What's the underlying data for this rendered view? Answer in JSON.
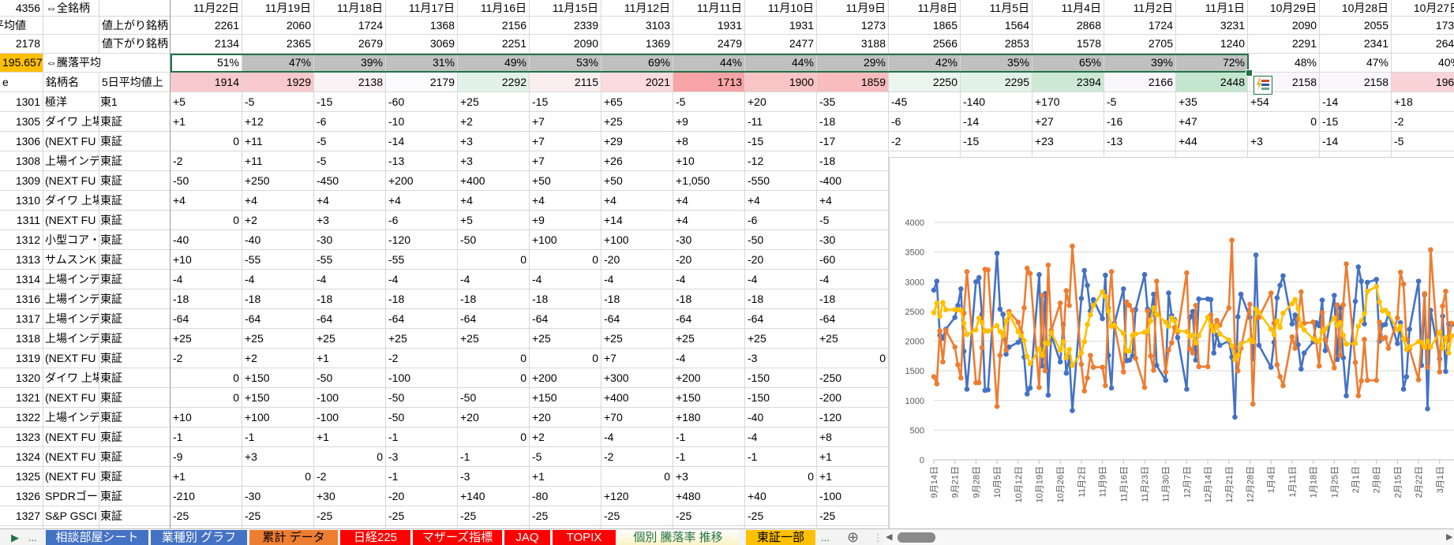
{
  "colors": {
    "accent": "#217346",
    "up_series": "#4472c4",
    "down_series": "#ed7d31",
    "avg_series": "#ffc000",
    "highlight_cell": "#ffc000"
  },
  "header": {
    "a1": "4356",
    "b1": "⇔全銘柄",
    "a2": "平均値",
    "c2": "値上がり銘柄",
    "a3": "2178",
    "c3": "値下がり銘柄",
    "a4": "195.657",
    "b4": "⇔騰落平均",
    "a5": "e",
    "b5": "銘柄名",
    "c5": "5日平均値上"
  },
  "dates": [
    "11月22日",
    "11月19日",
    "11月18日",
    "11月17日",
    "11月16日",
    "11月15日",
    "11月12日",
    "11月11日",
    "11月10日",
    "11月9日",
    "11月8日",
    "11月5日",
    "11月4日",
    "11月2日",
    "11月1日",
    "10月29日",
    "10月28日",
    "10月27日"
  ],
  "advancers": [
    "2261",
    "2060",
    "1724",
    "1368",
    "2156",
    "2339",
    "3103",
    "1931",
    "1931",
    "1273",
    "1865",
    "1564",
    "2868",
    "1724",
    "3231",
    "2090",
    "2055",
    "1732"
  ],
  "decliners": [
    "2134",
    "2365",
    "2679",
    "3069",
    "2251",
    "2090",
    "1369",
    "2479",
    "2477",
    "3188",
    "2566",
    "2853",
    "1578",
    "2705",
    "1240",
    "2291",
    "2341",
    "2645"
  ],
  "ratio": [
    "51%",
    "47%",
    "39%",
    "31%",
    "49%",
    "53%",
    "69%",
    "44%",
    "44%",
    "29%",
    "42%",
    "35%",
    "65%",
    "39%",
    "72%",
    "48%",
    "47%",
    "40%"
  ],
  "avg5": [
    "1914",
    "1929",
    "2138",
    "2179",
    "2292",
    "2115",
    "2021",
    "1713",
    "1900",
    "1859",
    "2250",
    "2295",
    "2394",
    "2166",
    "2448",
    "2158",
    "2158",
    "1964"
  ],
  "avg5_colors": [
    "#f8c9cc",
    "#f8c9cc",
    "#faf3f5",
    "#fbfafd",
    "#e3f2e8",
    "#fbeef1",
    "#fadadd",
    "#f8a3a5",
    "#f9c4c6",
    "#f8bcbf",
    "#eaf5ee",
    "#e3f2e8",
    "#cde9d6",
    "#f9f7fb",
    "#c4e6ce",
    "#f9f7fb",
    "#f9f7fb",
    "#f9d3d6"
  ],
  "rows": [
    {
      "code": "1301",
      "name": "極洋",
      "market": "東1",
      "values": [
        "+5",
        "-5",
        "-15",
        "-60",
        "+25",
        "-15",
        "+65",
        "-5",
        "+20",
        "-35",
        "-45",
        "-140",
        "+170",
        "-5",
        "+35",
        "+54",
        "-14",
        "+18"
      ]
    },
    {
      "code": "1305",
      "name": "ダイワ 上場",
      "market": "東証",
      "values": [
        "+1",
        "+12",
        "-6",
        "-10",
        "+2",
        "+7",
        "+25",
        "+9",
        "-11",
        "-18",
        "-6",
        "-14",
        "+27",
        "-16",
        "+47",
        "0",
        "-15",
        "-2"
      ]
    },
    {
      "code": "1306",
      "name": "(NEXT FU",
      "market": "東証",
      "values": [
        "0",
        "+11",
        "-5",
        "-14",
        "+3",
        "+7",
        "+29",
        "+8",
        "-15",
        "-17",
        "-2",
        "-15",
        "+23",
        "-13",
        "+44",
        "+3",
        "-14",
        "-5"
      ]
    },
    {
      "code": "1308",
      "name": "上場インデ",
      "market": "東証",
      "values": [
        "-2",
        "+11",
        "-5",
        "-13",
        "+3",
        "+7",
        "+26",
        "+10",
        "-12",
        "-18",
        "-6",
        "-15",
        "+26",
        "-15",
        "+45",
        "+5",
        "-16",
        "-5"
      ]
    },
    {
      "code": "1309",
      "name": "(NEXT FU",
      "market": "東証",
      "values": [
        "-50",
        "+250",
        "-450",
        "+200",
        "+400",
        "+50",
        "+50",
        "+1,050",
        "-550",
        "-400"
      ]
    },
    {
      "code": "1310",
      "name": "ダイワ 上場",
      "market": "東証",
      "values": [
        "+4",
        "+4",
        "+4",
        "+4",
        "+4",
        "+4",
        "+4",
        "+4",
        "+4",
        "+4"
      ]
    },
    {
      "code": "1311",
      "name": "(NEXT FU",
      "market": "東証",
      "values": [
        "0",
        "+2",
        "+3",
        "-6",
        "+5",
        "+9",
        "+14",
        "+4",
        "-6",
        "-5"
      ]
    },
    {
      "code": "1312",
      "name": "小型コア・",
      "market": "東証",
      "values": [
        "-40",
        "-40",
        "-30",
        "-120",
        "-50",
        "+100",
        "+100",
        "-30",
        "-50",
        "-30"
      ]
    },
    {
      "code": "1313",
      "name": "サムスンK",
      "market": "東証",
      "values": [
        "+10",
        "-55",
        "-55",
        "-55",
        "0",
        "0",
        "-20",
        "-20",
        "-20",
        "-60"
      ]
    },
    {
      "code": "1314",
      "name": "上場インデ",
      "market": "東証",
      "values": [
        "-4",
        "-4",
        "-4",
        "-4",
        "-4",
        "-4",
        "-4",
        "-4",
        "-4",
        "-4"
      ]
    },
    {
      "code": "1316",
      "name": "上場インデ",
      "market": "東証",
      "values": [
        "-18",
        "-18",
        "-18",
        "-18",
        "-18",
        "-18",
        "-18",
        "-18",
        "-18",
        "-18"
      ]
    },
    {
      "code": "1317",
      "name": "上場インデ",
      "market": "東証",
      "values": [
        "-64",
        "-64",
        "-64",
        "-64",
        "-64",
        "-64",
        "-64",
        "-64",
        "-64",
        "-64"
      ]
    },
    {
      "code": "1318",
      "name": "上場インデ",
      "market": "東証",
      "values": [
        "+25",
        "+25",
        "+25",
        "+25",
        "+25",
        "+25",
        "+25",
        "+25",
        "+25",
        "+25"
      ]
    },
    {
      "code": "1319",
      "name": "(NEXT FU",
      "market": "東証",
      "values": [
        "-2",
        "+2",
        "+1",
        "-2",
        "0",
        "0",
        "+7",
        "-4",
        "-3",
        "0"
      ]
    },
    {
      "code": "1320",
      "name": "ダイワ 上場",
      "market": "東証",
      "values": [
        "0",
        "+150",
        "-50",
        "-100",
        "0",
        "+200",
        "+300",
        "+200",
        "-150",
        "-250"
      ]
    },
    {
      "code": "1321",
      "name": "(NEXT FU",
      "market": "東証",
      "values": [
        "0",
        "+150",
        "-100",
        "-50",
        "-50",
        "+150",
        "+400",
        "+150",
        "-150",
        "-200"
      ]
    },
    {
      "code": "1322",
      "name": "上場インデ",
      "market": "東証",
      "values": [
        "+10",
        "+100",
        "-100",
        "-50",
        "+20",
        "+20",
        "+70",
        "+180",
        "-40",
        "-120"
      ]
    },
    {
      "code": "1323",
      "name": "(NEXT FU",
      "market": "東証",
      "values": [
        "-1",
        "-1",
        "+1",
        "-1",
        "0",
        "+2",
        "-4",
        "-1",
        "-4",
        "+8"
      ]
    },
    {
      "code": "1324",
      "name": "(NEXT FU",
      "market": "東証",
      "values": [
        "-9",
        "+3",
        "0",
        "-3",
        "-1",
        "-5",
        "-2",
        "-1",
        "-1",
        "+1"
      ]
    },
    {
      "code": "1325",
      "name": "(NEXT FU",
      "market": "東証",
      "values": [
        "+1",
        "0",
        "-2",
        "-1",
        "-3",
        "+1",
        "0",
        "+3",
        "0",
        "+1"
      ]
    },
    {
      "code": "1326",
      "name": "SPDRゴー",
      "market": "東証",
      "values": [
        "-210",
        "-30",
        "+30",
        "-20",
        "+140",
        "-80",
        "+120",
        "+480",
        "+40",
        "-100"
      ]
    },
    {
      "code": "1327",
      "name": "S&P GSCI",
      "market": "東証",
      "values": [
        "-25",
        "-25",
        "-25",
        "-25",
        "-25",
        "-25",
        "-25",
        "-25",
        "-25",
        "-25"
      ]
    },
    {
      "code": "1328",
      "name": "(NEXT FU",
      "market": "東証",
      "values": [
        "-40",
        "-20",
        "+10",
        "0",
        "+40",
        "-30",
        "+40",
        "+130",
        "+10",
        "-40"
      ]
    }
  ],
  "tabs": {
    "nav_prev": "▶",
    "more_left": "...",
    "more_right": "...",
    "add": "⊕",
    "split": "⋮",
    "scroll_left": "◀",
    "scroll_right": "▶",
    "items": [
      {
        "label": "相談部屋シート",
        "bg": "#4472c4",
        "fg": "#ffffff"
      },
      {
        "label": "業種別 グラフ",
        "bg": "#4472c4",
        "fg": "#ffffff"
      },
      {
        "label": "累計 データ",
        "bg": "#ed7d31",
        "fg": "#000000"
      },
      {
        "label": "日経225",
        "bg": "#ff0000",
        "fg": "#ffffff"
      },
      {
        "label": "マザーズ指標",
        "bg": "#ff0000",
        "fg": "#ffffff"
      },
      {
        "label": "JAQ",
        "bg": "#ff0000",
        "fg": "#ffffff"
      },
      {
        "label": "TOPIX",
        "bg": "#ff0000",
        "fg": "#ffffff"
      },
      {
        "label": "個別 騰落率 推移",
        "bg": "#fdfbea",
        "fg": "#217346",
        "active": true
      },
      {
        "label": "東証一部",
        "bg": "#ffc000",
        "fg": "#000000"
      }
    ]
  },
  "chart_data": {
    "type": "line",
    "ylim": [
      0,
      4000
    ],
    "yticks": [
      0,
      500,
      1000,
      1500,
      2000,
      2500,
      3000,
      3500,
      4000
    ],
    "grid": true,
    "legend": "none",
    "xtick_labels": [
      "9月14日",
      "9月21日",
      "9月28日",
      "10月5日",
      "10月12日",
      "10月19日",
      "10月26日",
      "11月2日",
      "11月9日",
      "11月16日",
      "11月23日",
      "11月30日",
      "12月7日",
      "12月14日",
      "12月21日",
      "12月28日",
      "1月4日",
      "1月11日",
      "1月18日",
      "1月25日",
      "2月1日",
      "2月8日",
      "2月15日",
      "2月22日",
      "3月1日"
    ],
    "x": [
      "9/14",
      "9/15",
      "9/16",
      "9/17",
      "9/18",
      "9/21",
      "9/22",
      "9/23",
      "9/24",
      "9/25",
      "9/28",
      "9/29",
      "9/30",
      "10/1",
      "10/2",
      "10/5",
      "10/6",
      "10/7",
      "10/8",
      "10/9",
      "10/12",
      "10/13",
      "10/14",
      "10/15",
      "10/16",
      "10/19",
      "10/20",
      "10/21",
      "10/22",
      "10/23",
      "10/26",
      "10/27",
      "10/28",
      "10/29",
      "10/30",
      "11/2",
      "11/3",
      "11/4",
      "11/5",
      "11/6",
      "11/9",
      "11/10",
      "11/11",
      "11/12",
      "11/13",
      "11/16",
      "11/17",
      "11/18",
      "11/19",
      "11/20",
      "11/23",
      "11/24",
      "11/25",
      "11/26",
      "11/27",
      "11/30",
      "12/1",
      "12/2",
      "12/3",
      "12/4",
      "12/7",
      "12/8",
      "12/9",
      "12/10",
      "12/11",
      "12/14",
      "12/15",
      "12/16",
      "12/17",
      "12/18",
      "12/21",
      "12/22",
      "12/23",
      "12/24",
      "12/25",
      "12/28",
      "12/29",
      "12/30",
      "12/31",
      "1/4",
      "1/5",
      "1/6",
      "1/7",
      "1/8",
      "1/11",
      "1/12",
      "1/13",
      "1/14",
      "1/15",
      "1/18",
      "1/19",
      "1/20",
      "1/21",
      "1/22",
      "1/25",
      "1/26",
      "1/27",
      "1/28",
      "1/29",
      "2/1",
      "2/2",
      "2/3",
      "2/4",
      "2/5",
      "2/8",
      "2/9",
      "2/10",
      "2/11",
      "2/12",
      "2/15",
      "2/16",
      "2/17",
      "2/18",
      "2/19",
      "2/22",
      "2/23",
      "2/24",
      "2/25",
      "2/26",
      "3/1",
      "3/2",
      "3/3",
      "3/4",
      "3/5"
    ],
    "series": [
      {
        "color": "#4472c4",
        "values": [
          2860,
          3010,
          2100,
          2050,
          2200,
          2400,
          2600,
          2880,
          1830,
          1190,
          3000,
          3070,
          2450,
          1170,
          1180,
          3480,
          2540,
          2450,
          1780,
          1900,
          1980,
          2050,
          1730,
          1110,
          1210,
          3120,
          1580,
          2800,
          1090,
          2100,
          1650,
          2280,
          1460,
          1730,
          830,
          2720,
          3190,
          2940,
          2510,
          2700,
          2380,
          3110,
          1760,
          1210,
          2300,
          2880,
          1670,
          1680,
          1750,
          2530,
          3120,
          2540,
          2430,
          2790,
          1590,
          1340,
          2810,
          2430,
          2360,
          2060,
          1190,
          2400,
          2500,
          1680,
          2710,
          2710,
          2700,
          1800,
          2100,
          1930,
          2000,
          1730,
          720,
          2410,
          2790,
          2400,
          1700,
          3450,
          1930,
          1560,
          1980,
          2730,
          2940,
          3100,
          2290,
          2440,
          1940,
          1530,
          1800,
          1990,
          2310,
          2260,
          2690,
          1840,
          2770,
          1690,
          2560,
          1720,
          1080,
          2670,
          3250,
          3010,
          2290,
          2990,
          3040,
          2000,
          2270,
          2280,
          2460,
          1960,
          2310,
          1190,
          1400,
          2200,
          3010,
          1590,
          2780,
          860,
          2520,
          1700,
          2420,
          1490,
          2290,
          2280
        ]
      },
      {
        "color": "#ed7d31",
        "values": [
          1400,
          1280,
          2170,
          1650,
          2180,
          1900,
          1600,
          1380,
          2470,
          3170,
          1300,
          1300,
          1890,
          3210,
          3200,
          900,
          1760,
          2130,
          1850,
          2500,
          2320,
          2140,
          2560,
          3230,
          3140,
          1220,
          2770,
          1500,
          3280,
          2180,
          2640,
          2000,
          2850,
          2600,
          3600,
          1610,
          1160,
          1380,
          1760,
          1560,
          1560,
          1250,
          2560,
          3170,
          2260,
          1480,
          2660,
          2600,
          2520,
          1710,
          1220,
          2510,
          1750,
          1510,
          3010,
          1480,
          1850,
          1970,
          2230,
          2150,
          3150,
          1870,
          1800,
          2600,
          1570,
          1570,
          2440,
          2200,
          2350,
          2270,
          2560,
          3700,
          1900,
          1500,
          1880,
          2620,
          940,
          2380,
          2400,
          2810,
          2300,
          1600,
          1400,
          1250,
          2070,
          1880,
          2370,
          2830,
          2300,
          2320,
          1990,
          1580,
          2480,
          2030,
          1550,
          2610,
          1760,
          2610,
          3300,
          1640,
          1080,
          1330,
          2030,
          1340,
          1340,
          2320,
          2040,
          2060,
          1880,
          2390,
          3160,
          2960,
          2030,
          1870,
          1350,
          1980,
          2800,
          1560,
          3540,
          1480,
          2590,
          2840,
          2020,
          2300
        ]
      },
      {
        "color": "#ffc000",
        "values": [
          2480,
          2640,
          2420,
          2650,
          2530,
          2530,
          2530,
          2520,
          2300,
          2110,
          2190,
          2390,
          2310,
          2170,
          2170,
          2260,
          2160,
          2090,
          2340,
          2460,
          2160,
          2090,
          2010,
          1740,
          1620,
          1870,
          1760,
          1970,
          1960,
          2140,
          1850,
          1990,
          1720,
          1860,
          1590,
          1800,
          1990,
          2280,
          2440,
          2600,
          2830,
          2750,
          2500,
          2250,
          2270,
          2130,
          1840,
          1830,
          2100,
          2120,
          2150,
          2170,
          2340,
          2560,
          2450,
          2320,
          2250,
          2390,
          2340,
          2180,
          2160,
          2080,
          2100,
          1970,
          2090,
          2400,
          2260,
          2170,
          2250,
          2120,
          2020,
          1920,
          1690,
          1760,
          1950,
          2020,
          1990,
          2540,
          2480,
          2200,
          2110,
          2340,
          2230,
          2470,
          2630,
          2700,
          2550,
          2260,
          2190,
          2040,
          2010,
          2000,
          2160,
          2200,
          2390,
          2260,
          2310,
          2100,
          1950,
          1960,
          2250,
          2340,
          2460,
          2840,
          2920,
          2660,
          2510,
          2520,
          2460,
          2190,
          2250,
          2040,
          1860,
          1900,
          1990,
          1980,
          1900,
          2000,
          1900,
          2150,
          1880,
          2060,
          1800,
          2090
        ]
      }
    ]
  }
}
